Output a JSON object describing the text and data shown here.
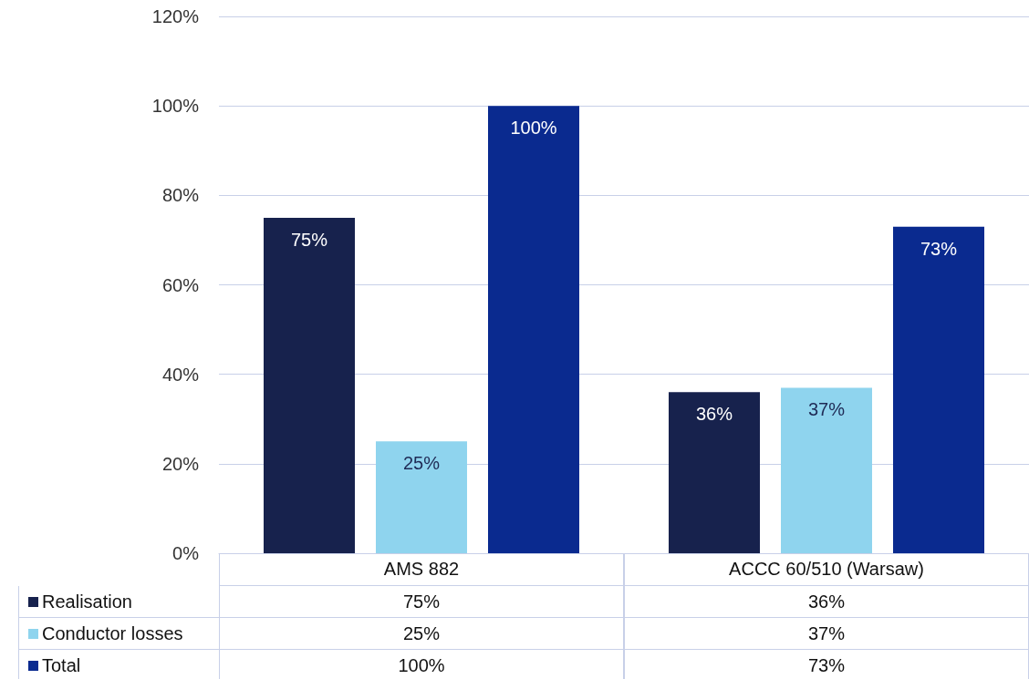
{
  "chart_data": {
    "type": "bar",
    "categories": [
      "AMS 882",
      "ACCC 60/510 (Warsaw)"
    ],
    "series": [
      {
        "name": "Realisation",
        "color": "#17224d",
        "values": [
          75,
          36
        ],
        "value_labels": [
          "75%",
          "36%"
        ]
      },
      {
        "name": "Conductor losses",
        "color": "#8fd4ee",
        "values": [
          25,
          37
        ],
        "value_labels": [
          "25%",
          "37%"
        ]
      },
      {
        "name": "Total",
        "color": "#0a2a8f",
        "values": [
          100,
          73
        ],
        "value_labels": [
          "100%",
          "73%"
        ]
      }
    ],
    "ylim": [
      0,
      120
    ],
    "yticks": [
      {
        "value": 0,
        "label": "0%"
      },
      {
        "value": 20,
        "label": "20%"
      },
      {
        "value": 40,
        "label": "40%"
      },
      {
        "value": 60,
        "label": "60%"
      },
      {
        "value": 80,
        "label": "80%"
      },
      {
        "value": 100,
        "label": "100%"
      },
      {
        "value": 120,
        "label": "120%"
      }
    ],
    "grid": "y",
    "legend": "bottom left"
  }
}
